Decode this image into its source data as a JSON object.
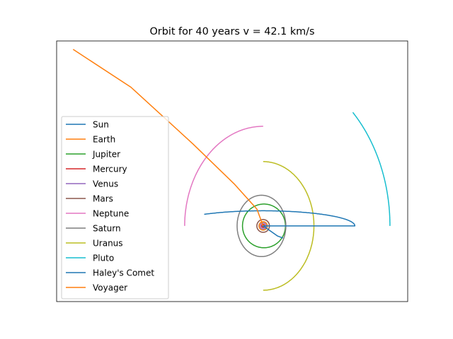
{
  "chart_data": {
    "type": "line",
    "title": "Orbit for 40 years v = 42.1 km/s",
    "xlabel": "",
    "ylabel": "",
    "xlim": [
      -50,
      35
    ],
    "ylim": [
      -18,
      44
    ],
    "axes_ticks_visible": false,
    "grid": false,
    "legend_position": "center-left",
    "series": [
      {
        "name": "Sun",
        "color": "#1f77b4",
        "kind": "point",
        "x": [
          0
        ],
        "y": [
          0
        ]
      },
      {
        "name": "Earth",
        "color": "#ff7f0e",
        "kind": "ellipse",
        "a": 1.0,
        "b": 1.0,
        "cx": 0,
        "cy": 0,
        "t0": 0,
        "t1": 360
      },
      {
        "name": "Jupiter",
        "color": "#2ca02c",
        "kind": "ellipse",
        "a": 5.2,
        "b": 5.2,
        "cx": 0.2,
        "cy": 0,
        "t0": 0,
        "t1": 360
      },
      {
        "name": "Mercury",
        "color": "#d62728",
        "kind": "ellipse",
        "a": 0.39,
        "b": 0.39,
        "cx": 0,
        "cy": 0,
        "t0": 0,
        "t1": 360
      },
      {
        "name": "Venus",
        "color": "#9467bd",
        "kind": "ellipse",
        "a": 0.72,
        "b": 0.72,
        "cx": 0,
        "cy": 0,
        "t0": 0,
        "t1": 360
      },
      {
        "name": "Mars",
        "color": "#8c564b",
        "kind": "ellipse",
        "a": 1.52,
        "b": 1.52,
        "cx": 0,
        "cy": 0,
        "t0": 0,
        "t1": 360
      },
      {
        "name": "Neptune",
        "color": "#e377c2",
        "kind": "ellipse",
        "a": 19.0,
        "b": 23.7,
        "cx": 0,
        "cy": 0,
        "t0": 90,
        "t1": 180
      },
      {
        "name": "Saturn",
        "color": "#7f7f7f",
        "kind": "ellipse",
        "a": 5.9,
        "b": 7.3,
        "cx": -0.4,
        "cy": 0,
        "t0": 0,
        "t1": 360
      },
      {
        "name": "Uranus",
        "color": "#bcbd22",
        "kind": "ellipse",
        "a": 12.3,
        "b": 15.3,
        "cx": 0,
        "cy": 0,
        "t0": -90,
        "t1": 90
      },
      {
        "name": "Pluto",
        "color": "#17becf",
        "kind": "ellipse",
        "a": 30.7,
        "b": 38.2,
        "cx": 0,
        "cy": 0,
        "t0": 0,
        "t1": 45
      },
      {
        "name": "Haley's Comet",
        "color": "#1f77b4",
        "kind": "ellipse",
        "a": 22.2,
        "b": 3.6,
        "cx": 0,
        "cy": 0,
        "t0": 0,
        "t1": 130,
        "prefix": [
          [
            4.8,
            -2.9
          ],
          [
            3.5,
            -2.4
          ],
          [
            0,
            0
          ]
        ]
      },
      {
        "name": "Voyager",
        "color": "#ff7f0e",
        "kind": "polyline",
        "points": [
          [
            0,
            0
          ],
          [
            -1.5,
            4
          ],
          [
            -7,
            10
          ],
          [
            -17,
            19.5
          ],
          [
            -32,
            33
          ],
          [
            -46,
            42
          ]
        ]
      }
    ]
  }
}
